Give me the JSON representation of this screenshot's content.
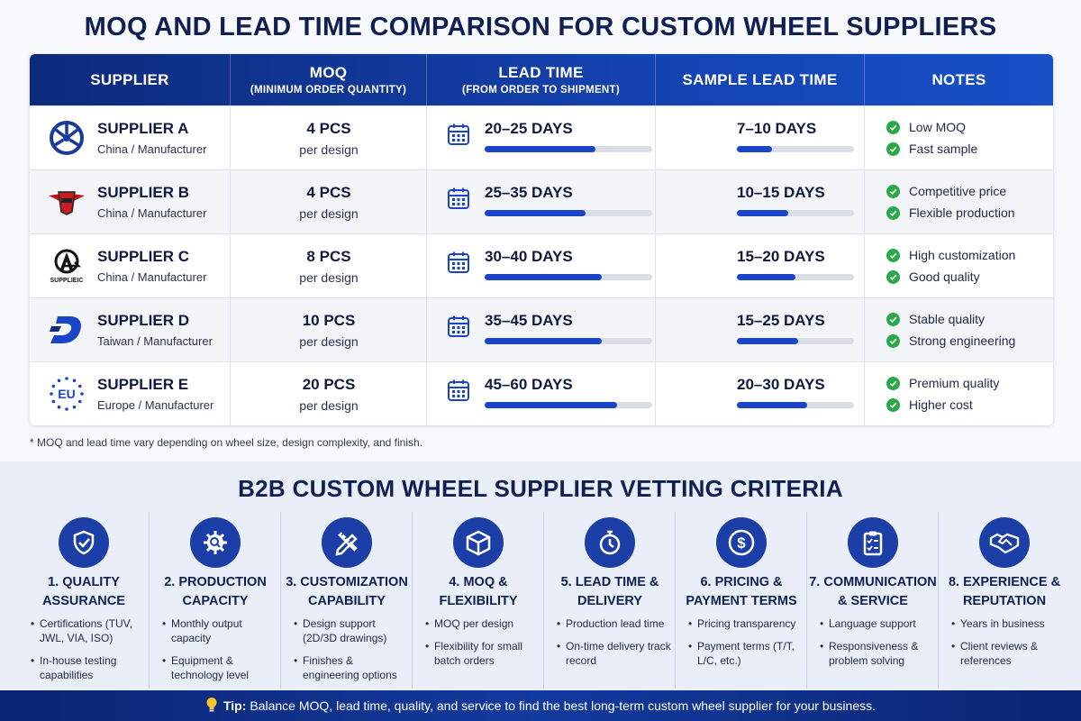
{
  "title": "MOQ AND LEAD TIME COMPARISON FOR CUSTOM WHEEL SUPPLIERS",
  "table": {
    "headers": [
      {
        "label": "SUPPLIER",
        "sub": ""
      },
      {
        "label": "MOQ",
        "sub": "(MINIMUM ORDER QUANTITY)"
      },
      {
        "label": "LEAD TIME",
        "sub": "(FROM ORDER TO SHIPMENT)"
      },
      {
        "label": "SAMPLE LEAD TIME",
        "sub": ""
      },
      {
        "label": "NOTES",
        "sub": ""
      }
    ],
    "rows": [
      {
        "name": "SUPPLIER A",
        "location": "China / Manufacturer",
        "logo_icon": "wheel-logo-icon",
        "logo_text": "",
        "moq": "4 PCS",
        "moq_unit": "per design",
        "lead_time": "20–25 DAYS",
        "lead_fill": 0.66,
        "sample": "7–10 DAYS",
        "sample_fill": 0.3,
        "notes": [
          "Low MOQ",
          "Fast sample"
        ]
      },
      {
        "name": "SUPPLIER B",
        "location": "China / Manufacturer",
        "logo_icon": "winged-badge-logo-icon",
        "logo_text": "",
        "moq": "4 PCS",
        "moq_unit": "per design",
        "lead_time": "25–35 DAYS",
        "lead_fill": 0.6,
        "sample": "10–15 DAYS",
        "sample_fill": 0.44,
        "notes": [
          "Competitive price",
          "Flexible production"
        ]
      },
      {
        "name": "SUPPLIER C",
        "location": "China / Manufacturer",
        "logo_icon": "arrow-a-logo-icon",
        "logo_text": "SUPPLIEIC",
        "moq": "8 PCS",
        "moq_unit": "per design",
        "lead_time": "30–40 DAYS",
        "lead_fill": 0.7,
        "sample": "15–20 DAYS",
        "sample_fill": 0.5,
        "notes": [
          "High customization",
          "Good quality"
        ]
      },
      {
        "name": "SUPPLIER D",
        "location": "Taiwan / Manufacturer",
        "logo_icon": "d-letter-logo-icon",
        "logo_text": "",
        "moq": "10 PCS",
        "moq_unit": "per design",
        "lead_time": "35–45 DAYS",
        "lead_fill": 0.7,
        "sample": "15–25 DAYS",
        "sample_fill": 0.52,
        "notes": [
          "Stable quality",
          "Strong engineering"
        ]
      },
      {
        "name": "SUPPLIER E",
        "location": "Europe / Manufacturer",
        "logo_icon": "eu-stars-logo-icon",
        "logo_text": "EU",
        "moq": "20 PCS",
        "moq_unit": "per design",
        "lead_time": "45–60 DAYS",
        "lead_fill": 0.79,
        "sample": "20–30 DAYS",
        "sample_fill": 0.6,
        "notes": [
          "Premium quality",
          "Higher cost"
        ]
      }
    ]
  },
  "footnote": "* MOQ and lead time vary depending on wheel size, design complexity, and finish.",
  "criteria_title": "B2B CUSTOM WHEEL SUPPLIER VETTING CRITERIA",
  "criteria": [
    {
      "icon": "shield-check-icon",
      "title_1": "1. QUALITY",
      "title_2": "ASSURANCE",
      "items": [
        "Certifications (TUV, JWL, VIA, ISO)",
        "In-house testing capabilities"
      ]
    },
    {
      "icon": "gear-search-icon",
      "title_1": "2. PRODUCTION",
      "title_2": "CAPACITY",
      "items": [
        "Monthly output capacity",
        "Equipment & technology level"
      ]
    },
    {
      "icon": "pencil-ruler-icon",
      "title_1": "3. CUSTOMIZATION",
      "title_2": "CAPABILITY",
      "items": [
        "Design support (2D/3D drawings)",
        "Finishes & engineering options"
      ]
    },
    {
      "icon": "box-icon",
      "title_1": "4. MOQ &",
      "title_2": "FLEXIBILITY",
      "items": [
        "MOQ per design",
        "Flexibility for small batch orders"
      ]
    },
    {
      "icon": "stopwatch-icon",
      "title_1": "5. LEAD TIME &",
      "title_2": "DELIVERY",
      "items": [
        "Production lead time",
        "On-time delivery track record"
      ]
    },
    {
      "icon": "dollar-coin-icon",
      "title_1": "6. PRICING &",
      "title_2": "PAYMENT TERMS",
      "items": [
        "Pricing transparency",
        "Payment terms (T/T, L/C, etc.)"
      ]
    },
    {
      "icon": "clipboard-checklist-icon",
      "title_1": "7. COMMUNICATION",
      "title_2": "& SERVICE",
      "items": [
        "Language support",
        "Responsiveness & problem solving"
      ]
    },
    {
      "icon": "handshake-icon",
      "title_1": "8. EXPERIENCE &",
      "title_2": "REPUTATION",
      "items": [
        "Years in business",
        "Client reviews & references"
      ]
    }
  ],
  "tip": {
    "label": "Tip:",
    "text": "Balance MOQ, lead time, quality, and service to find the best long-term custom wheel supplier for your business."
  },
  "colors": {
    "header_blue": "#1442b0",
    "bar_fill": "#1a45c9",
    "bar_track": "#d9dde6",
    "check_green": "#2aa84a",
    "icon_circle": "#1b3fa6"
  }
}
